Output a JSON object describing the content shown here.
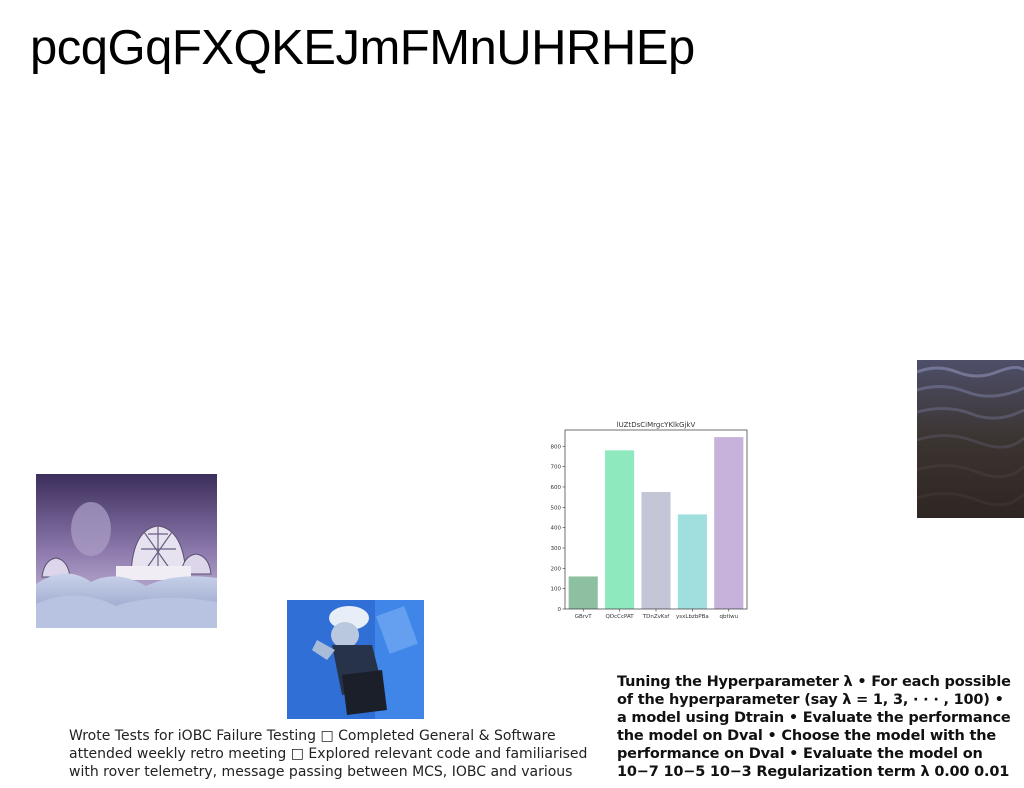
{
  "page": {
    "title": "pcqGqFXQKEJmFMnUHRHEp"
  },
  "images": {
    "fantasy": "fantasy-landscape-image",
    "person": "person-photo-image",
    "water": "water-texture-image"
  },
  "chart_data": {
    "type": "bar",
    "title": "lUZtDsCiMrgcYKlkGjkV",
    "categories": [
      "GBrvT",
      "QDcCcPAT",
      "TDnZvKsf",
      "ysxLbzbPBa",
      "qbtlwu"
    ],
    "values": [
      160,
      780,
      575,
      465,
      845
    ],
    "colors": [
      "#8cc0a0",
      "#8ee9be",
      "#c4c6d8",
      "#9fe0df",
      "#c6b2da"
    ],
    "ylim": [
      0,
      880
    ],
    "yticks": [
      0,
      100,
      200,
      300,
      400,
      500,
      600,
      700,
      800
    ],
    "xlabel": "",
    "ylabel": ""
  },
  "notes": {
    "lines": [
      "Wrote Tests for iOBC Failure Testing □ Completed General & Software",
      "attended weekly retro meeting □ Explored relevant code and familiarised",
      "with rover telemetry, message passing between MCS, IOBC and various"
    ]
  },
  "slide_text": {
    "lines": [
      "Tuning the Hyperparameter λ • For each possible",
      "of the hyperparameter (say λ = 1, 3, · · · , 100) •",
      "a model using Dtrain • Evaluate the performance",
      "the model on Dval • Choose the model with the",
      "performance on Dval • Evaluate the model on",
      "10−7 10−5 10−3 Regularization term λ 0.00 0.01"
    ]
  }
}
